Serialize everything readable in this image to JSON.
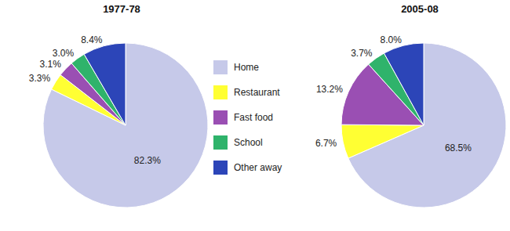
{
  "chart_data": [
    {
      "type": "pie",
      "title": "1977-78",
      "categories": [
        "Home",
        "Restaurant",
        "Fast food",
        "School",
        "Other away"
      ],
      "values": [
        82.3,
        3.3,
        3.1,
        3.0,
        8.4
      ],
      "value_labels": [
        "82.3%",
        "3.3%",
        "3.1%",
        "3.0%",
        "8.4%"
      ],
      "colors": [
        "#c6c9e9",
        "#ffff33",
        "#9a4fb3",
        "#2fb36b",
        "#2c45b8"
      ],
      "data_labels": true,
      "legend": "right"
    },
    {
      "type": "pie",
      "title": "2005-08",
      "categories": [
        "Home",
        "Restaurant",
        "Fast food",
        "School",
        "Other away"
      ],
      "values": [
        68.5,
        6.7,
        13.2,
        3.7,
        8.0
      ],
      "value_labels": [
        "68.5%",
        "6.7%",
        "13.2%",
        "3.7%",
        "8.0%"
      ],
      "colors": [
        "#c6c9e9",
        "#ffff33",
        "#9a4fb3",
        "#2fb36b",
        "#2c45b8"
      ],
      "data_labels": true
    }
  ]
}
